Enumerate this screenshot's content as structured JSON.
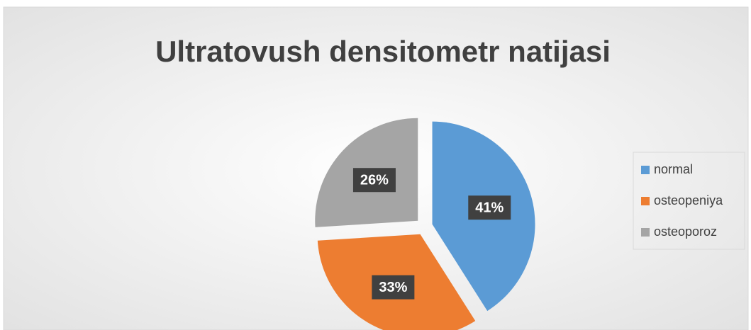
{
  "chart_data": {
    "type": "pie",
    "title": "Ultratovush densitometr natijasi",
    "categories": [
      "normal",
      "osteopeniya",
      "osteoporoz"
    ],
    "values": [
      41,
      33,
      26
    ],
    "value_labels": [
      "41%",
      "33%",
      "26%"
    ],
    "colors": [
      "#5b9bd5",
      "#ed7d31",
      "#a5a5a5"
    ],
    "legend": "right"
  }
}
